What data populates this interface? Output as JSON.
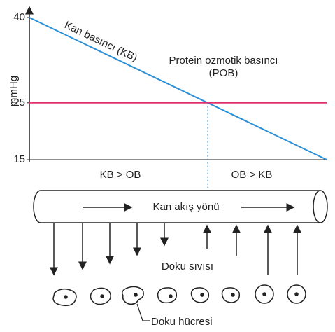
{
  "chart_data": {
    "type": "line",
    "y_label": "mmHg",
    "categories": [
      null,
      null
    ],
    "series": [
      {
        "name": "Kan basıncı (KB)",
        "color": "#2a8fd6",
        "values": [
          40,
          15
        ]
      },
      {
        "name": "Protein ozmotik basıncı (POB)",
        "color": "#e0306a",
        "values": [
          25,
          25
        ]
      }
    ],
    "ylim": [
      15,
      40
    ],
    "yticks": [
      15,
      25,
      40
    ],
    "regions": [
      "KB > OB",
      "OB > KB"
    ]
  },
  "diagram": {
    "flow_label": "Kan akış yönü",
    "fluid_label": "Doku sıvısı",
    "cell_label": "Doku hücresi"
  }
}
